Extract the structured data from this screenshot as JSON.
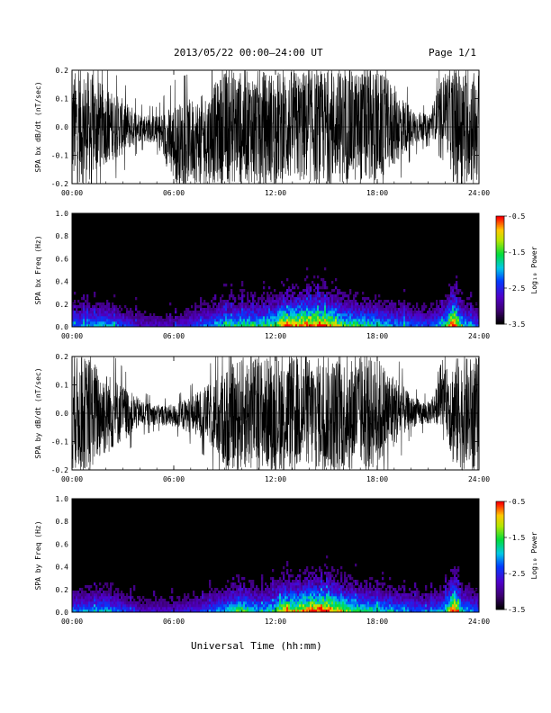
{
  "header": {
    "title": "2013/05/22  00:00–24:00 UT",
    "page": "Page 1/1"
  },
  "x_axis_title": "Universal Time (hh:mm)",
  "colorbar": {
    "label": "Log₁₀ Power",
    "tick_labels": [
      "-0.5",
      "-1.5",
      "-2.5",
      "-3.5"
    ]
  },
  "colors": {
    "trace": "#000000",
    "background": "#ffffff"
  },
  "chart_data": [
    {
      "type": "line",
      "ylabel": "SPA bx dB/dt (nT/sec)",
      "xlim": [
        0,
        24
      ],
      "ylim": [
        -0.2,
        0.2
      ],
      "x_ticks": [
        "00:00",
        "06:00",
        "12:00",
        "18:00",
        "24:00"
      ],
      "y_ticks": [
        "-0.2",
        "-0.1",
        "0.0",
        "0.1",
        "0.2"
      ],
      "series": [
        {
          "x": [
            0,
            1,
            2,
            3,
            4,
            5,
            6,
            7,
            8,
            9,
            10,
            11,
            12,
            13,
            14,
            15,
            16,
            17,
            18,
            19,
            20,
            21,
            22,
            22.5,
            23,
            24
          ],
          "y_range": [
            [
              -0.2,
              0.2
            ],
            [
              -0.2,
              0.2
            ],
            [
              -0.13,
              0.14
            ],
            [
              -0.1,
              0.1
            ],
            [
              -0.05,
              0.05
            ],
            [
              -0.06,
              0.04
            ],
            [
              -0.2,
              0.08
            ],
            [
              -0.2,
              0.1
            ],
            [
              -0.2,
              0.12
            ],
            [
              -0.2,
              0.2
            ],
            [
              -0.2,
              0.2
            ],
            [
              -0.2,
              0.2
            ],
            [
              -0.2,
              0.2
            ],
            [
              -0.2,
              0.2
            ],
            [
              -0.2,
              0.2
            ],
            [
              -0.2,
              0.2
            ],
            [
              -0.2,
              0.2
            ],
            [
              -0.2,
              0.2
            ],
            [
              -0.2,
              0.2
            ],
            [
              -0.14,
              0.15
            ],
            [
              -0.07,
              0.07
            ],
            [
              -0.04,
              0.04
            ],
            [
              -0.05,
              0.2
            ],
            [
              -0.2,
              0.2
            ],
            [
              -0.2,
              0.2
            ],
            [
              -0.2,
              0.2
            ]
          ]
        }
      ]
    },
    {
      "type": "heatmap",
      "ylabel": "SPA bx Freq (Hz)",
      "xlim": [
        0,
        24
      ],
      "ylim": [
        0,
        1.0
      ],
      "zlim": [
        -3.5,
        -0.5
      ],
      "x_ticks": [
        "00:00",
        "06:00",
        "12:00",
        "18:00",
        "24:00"
      ],
      "y_ticks": [
        "0.0",
        "0.2",
        "0.4",
        "0.6",
        "0.8",
        "1.0"
      ],
      "activity_time": [
        0,
        2,
        4,
        6,
        8,
        9,
        10,
        11,
        12,
        12.5,
        13,
        14,
        15,
        16,
        17,
        18,
        19,
        20,
        21,
        22,
        22.5,
        23,
        24
      ],
      "activity": [
        0.45,
        0.5,
        0.3,
        0.3,
        0.45,
        0.55,
        0.6,
        0.55,
        0.65,
        0.85,
        0.8,
        0.9,
        0.85,
        0.65,
        0.6,
        0.55,
        0.5,
        0.45,
        0.4,
        0.55,
        1.0,
        0.55,
        0.4
      ]
    },
    {
      "type": "line",
      "ylabel": "SPA by dB/dt (nT/sec)",
      "xlim": [
        0,
        24
      ],
      "ylim": [
        -0.2,
        0.2
      ],
      "x_ticks": [
        "00:00",
        "06:00",
        "12:00",
        "18:00",
        "24:00"
      ],
      "y_ticks": [
        "-0.2",
        "-0.1",
        "0.0",
        "0.1",
        "0.2"
      ],
      "series": [
        {
          "x": [
            0,
            1,
            2,
            3,
            4,
            5,
            6,
            7,
            8,
            9,
            10,
            11,
            12,
            13,
            14,
            15,
            16,
            17,
            18,
            19,
            20,
            21,
            22,
            22.5,
            23,
            24
          ],
          "y_range": [
            [
              -0.2,
              0.2
            ],
            [
              -0.2,
              0.2
            ],
            [
              -0.15,
              0.15
            ],
            [
              -0.1,
              0.1
            ],
            [
              -0.05,
              0.05
            ],
            [
              -0.04,
              0.03
            ],
            [
              -0.05,
              0.03
            ],
            [
              -0.07,
              0.06
            ],
            [
              -0.1,
              0.1
            ],
            [
              -0.2,
              0.15
            ],
            [
              -0.2,
              0.2
            ],
            [
              -0.2,
              0.2
            ],
            [
              -0.2,
              0.2
            ],
            [
              -0.2,
              0.2
            ],
            [
              -0.2,
              0.2
            ],
            [
              -0.2,
              0.2
            ],
            [
              -0.2,
              0.2
            ],
            [
              -0.2,
              0.2
            ],
            [
              -0.2,
              0.2
            ],
            [
              -0.12,
              0.14
            ],
            [
              -0.05,
              0.06
            ],
            [
              -0.04,
              0.04
            ],
            [
              -0.04,
              0.15
            ],
            [
              -0.2,
              0.2
            ],
            [
              -0.2,
              0.2
            ],
            [
              -0.2,
              0.2
            ]
          ]
        }
      ]
    },
    {
      "type": "heatmap",
      "ylabel": "SPA by Freq (Hz)",
      "xlim": [
        0,
        24
      ],
      "ylim": [
        0,
        1.0
      ],
      "zlim": [
        -3.5,
        -0.5
      ],
      "x_ticks": [
        "00:00",
        "06:00",
        "12:00",
        "18:00",
        "24:00"
      ],
      "y_ticks": [
        "0.0",
        "0.2",
        "0.4",
        "0.6",
        "0.8",
        "1.0"
      ],
      "activity_time": [
        0,
        2,
        4,
        6,
        8,
        9,
        10,
        11,
        12,
        12.5,
        13,
        14,
        15,
        16,
        17,
        18,
        19,
        20,
        21,
        22,
        22.5,
        23,
        24
      ],
      "activity": [
        0.45,
        0.5,
        0.3,
        0.3,
        0.4,
        0.5,
        0.65,
        0.5,
        0.6,
        0.8,
        0.75,
        0.85,
        0.9,
        0.7,
        0.6,
        0.55,
        0.5,
        0.45,
        0.4,
        0.55,
        1.0,
        0.55,
        0.4
      ]
    }
  ]
}
